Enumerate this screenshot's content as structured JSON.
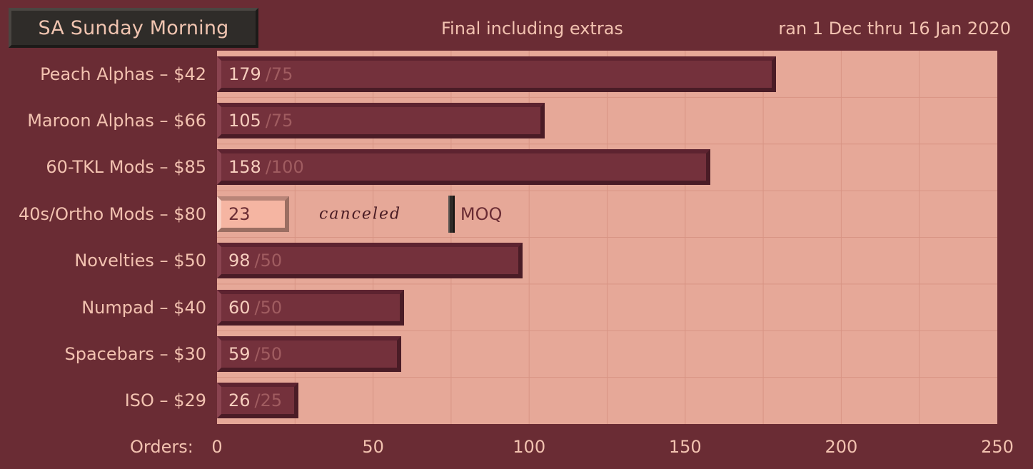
{
  "header": {
    "title": "SA Sunday Morning",
    "subtitle": "Final including extras",
    "date_range": "ran 1 Dec thru 16 Jan 2020"
  },
  "axis": {
    "prefix": "Orders:",
    "ticks": [
      "0",
      "50",
      "100",
      "150",
      "200",
      "250"
    ]
  },
  "colors": {
    "background": "#6a2c34",
    "plot": "#e6a898",
    "bar": "#74313c",
    "highlight_bar": "#f5b5a2"
  },
  "chart_data": {
    "type": "bar",
    "orientation": "horizontal",
    "title": "SA Sunday Morning",
    "subtitle": "Final including extras",
    "xlabel": "Orders:",
    "xlim": [
      0,
      250
    ],
    "xticks": [
      0,
      50,
      100,
      150,
      200,
      250
    ],
    "grid": true,
    "categories": [
      "Peach Alphas – $42",
      "Maroon Alphas – $66",
      "60-TKL Mods – $85",
      "40s/Ortho Mods – $80",
      "Novelties – $50",
      "Numpad – $40",
      "Spacebars – $30",
      "ISO – $29"
    ],
    "values": [
      179,
      105,
      158,
      23,
      98,
      60,
      59,
      26
    ],
    "moq": [
      75,
      75,
      100,
      75,
      50,
      50,
      50,
      25
    ],
    "moq_labels": [
      "/75",
      "/75",
      "/100",
      "",
      "/50",
      "/50",
      "/50",
      "/25"
    ],
    "annotations": [
      {
        "category_index": 3,
        "text": "canceled"
      },
      {
        "category_index": 3,
        "text": "MOQ",
        "x": 75
      }
    ]
  }
}
